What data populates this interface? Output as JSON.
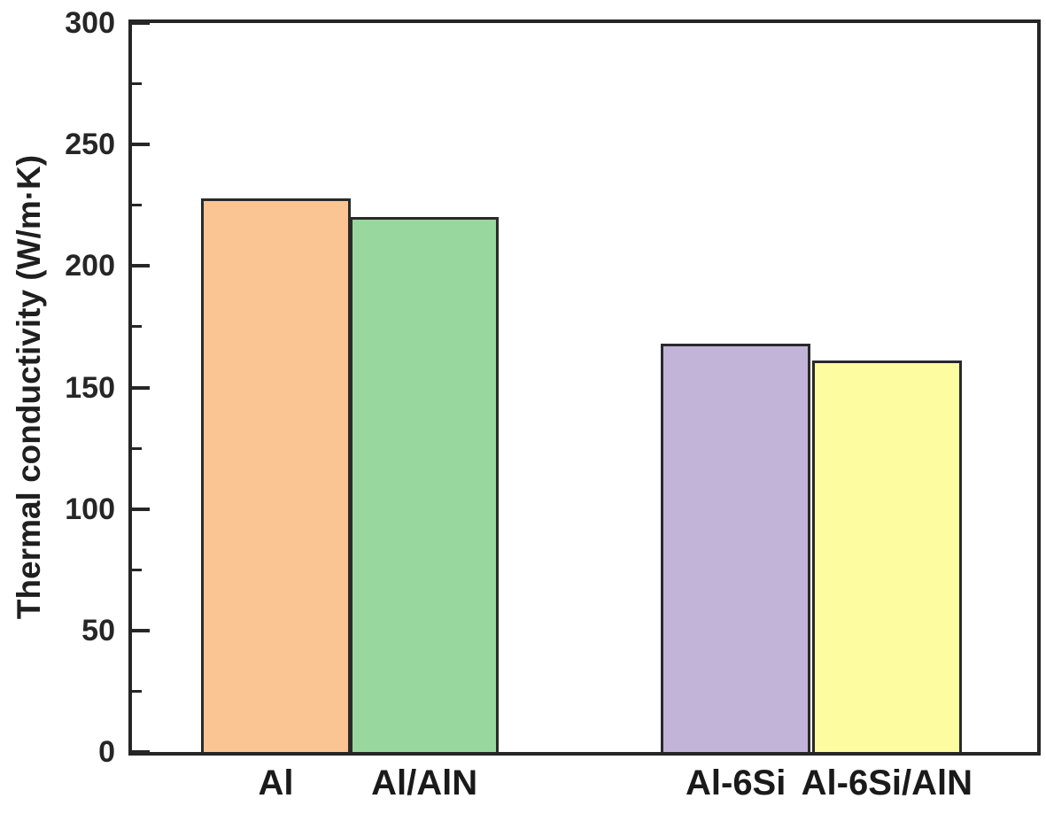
{
  "chart_data": {
    "type": "bar",
    "title": "",
    "xlabel": "",
    "ylabel": "Thermal conductivity (W/m·K)",
    "ylim": [
      0,
      300
    ],
    "yticks": [
      0,
      50,
      100,
      150,
      200,
      250,
      300
    ],
    "minor_ytick_step": 25,
    "grid": false,
    "legend": "none",
    "categories": [
      "Al",
      "Al/AlN",
      "Al-6Si",
      "Al-6Si/AlN"
    ],
    "values": [
      228,
      220,
      168,
      161
    ],
    "bar_colors": [
      "#fac592",
      "#98d79d",
      "#c2b3d8",
      "#fdfca1"
    ],
    "bar_edge_color": "#2a2a2a",
    "axis_color": "#262626",
    "layout": {
      "bar_center_fracs": [
        0.159,
        0.323,
        0.667,
        0.834
      ],
      "bar_width_frac": 0.165,
      "ticks_direction": "in",
      "box": true
    }
  }
}
